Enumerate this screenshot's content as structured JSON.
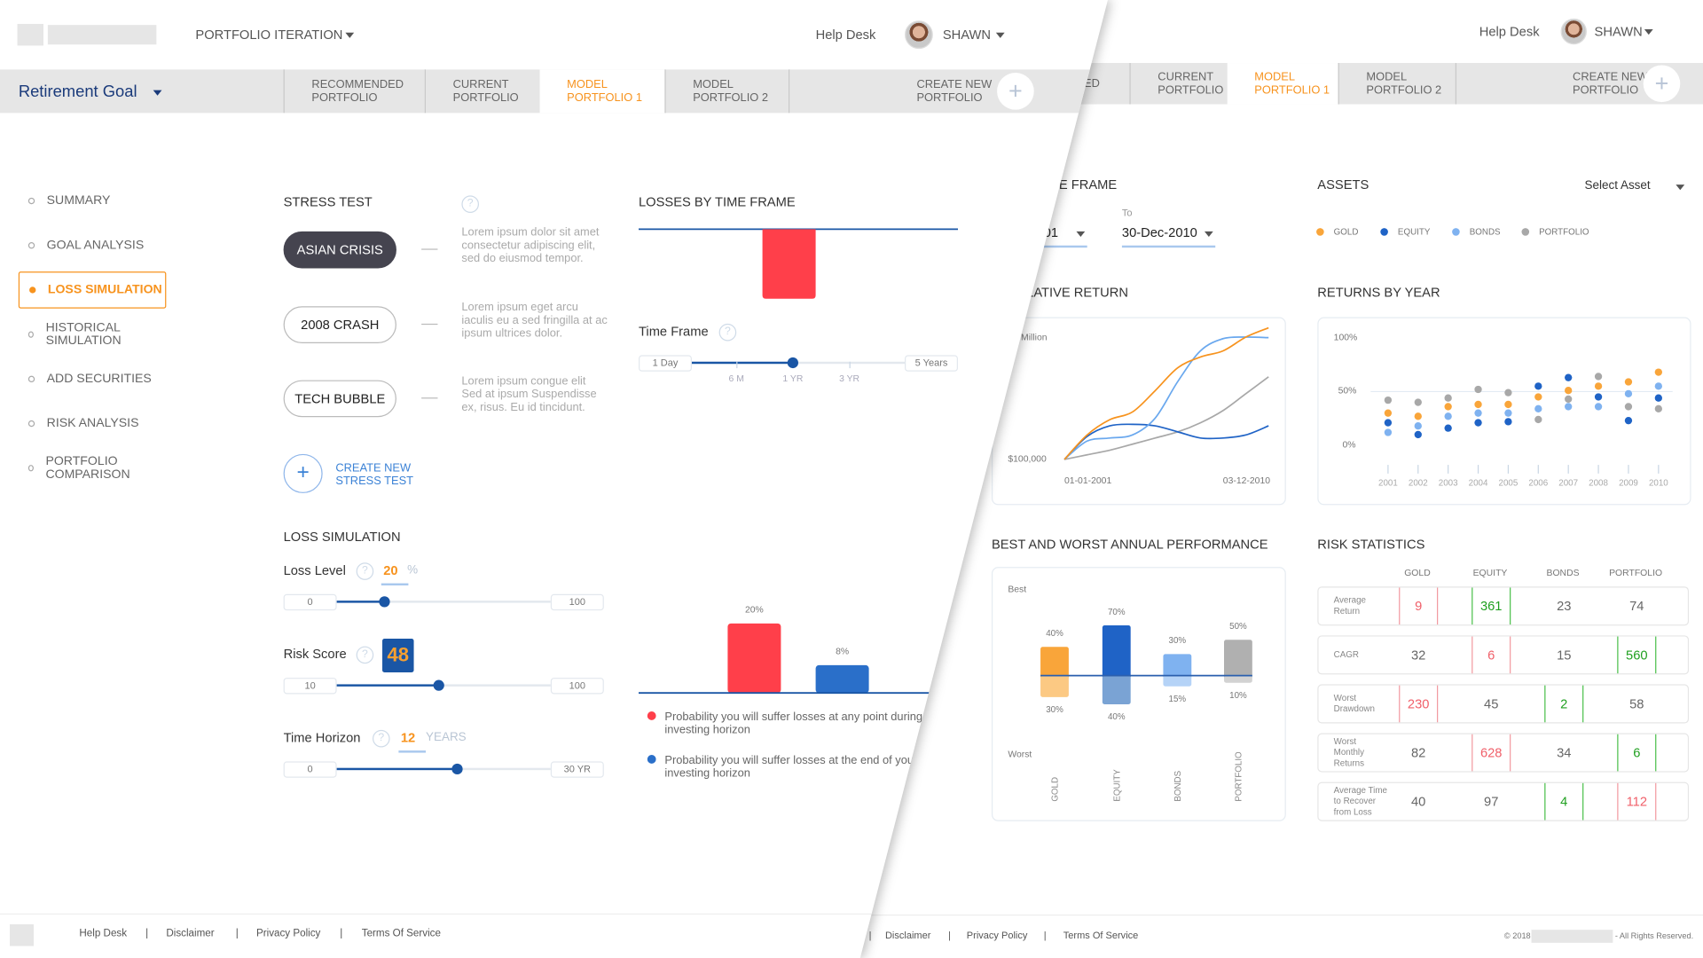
{
  "colors": {
    "accent_orange": "#f7931e",
    "navy": "#1a3a7a",
    "slider_blue": "#1a56a5",
    "loss_red": "#ff3f4a",
    "loss_blue": "#2a6fc9",
    "gold": "#f9a53a",
    "equity": "#1f63c6",
    "bonds": "#7fb2f0",
    "portfolio": "#a8a8a8"
  },
  "left": {
    "header": {
      "app_menu": "PORTFOLIO ITERATION",
      "help": "Help Desk",
      "user": "SHAWN"
    },
    "goal": "Retirement Goal",
    "tabs": [
      "RECOMMENDED\nPORTFOLIO",
      "CURRENT\nPORTFOLIO",
      "MODEL\nPORTFOLIO 1",
      "MODEL\nPORTFOLIO 2",
      "CREATE NEW\nPORTFOLIO"
    ],
    "active_tab": 2,
    "sidebar": [
      "SUMMARY",
      "GOAL ANALYSIS",
      "LOSS SIMULATION",
      "HISTORICAL SIMULATION",
      "ADD SECURITIES",
      "RISK ANALYSIS",
      "PORTFOLIO COMPARISON"
    ],
    "sidebar_active": 2,
    "stress_test": {
      "title": "STRESS TEST",
      "help": "?",
      "scenarios": [
        {
          "label": "ASIAN CRISIS",
          "desc": "Lorem ipsum dolor sit amet consectetur adipiscing elit, sed do eiusmod tempor.",
          "selected": true
        },
        {
          "label": "2008 CRASH",
          "desc": "Lorem ipsum eget arcu iaculis eu a sed fringilla at ac ipsum ultrices dolor.",
          "selected": false
        },
        {
          "label": "TECH BUBBLE",
          "desc": "Lorem ipsum congue elit Sed at ipsum Suspendisse ex, risus. Eu id tincidunt.",
          "selected": false
        }
      ],
      "create_label": "CREATE NEW\nSTRESS TEST"
    },
    "loss_simulation": {
      "title": "LOSS SIMULATION",
      "loss_level": {
        "label": "Loss Level",
        "value": "20",
        "unit": "%",
        "min": "0",
        "max": "100"
      },
      "risk_score": {
        "label": "Risk Score",
        "value": "48",
        "min": "10",
        "max": "100"
      },
      "time_horizon": {
        "label": "Time Horizon",
        "value": "12",
        "unit": "YEARS",
        "min": "0",
        "max": "30 YR"
      }
    },
    "losses_by_time_frame": {
      "title": "LOSSES BY TIME FRAME",
      "time_frame_label": "Time Frame",
      "slider": {
        "min": "1 Day",
        "max": "5 Years",
        "ticks": [
          "6 M",
          "1 YR",
          "3 YR"
        ],
        "selected": "1 YR"
      },
      "legend": [
        "Probability you will suffer losses at any point during your investing horizon",
        "Probability you will suffer losses at the end of your investing horizon"
      ]
    },
    "footer": [
      "Help Desk",
      "Disclaimer",
      "Privacy Policy",
      "Terms Of Service"
    ]
  },
  "right": {
    "header": {
      "help": "Help Desk",
      "user": "SHAWN"
    },
    "tabs": [
      "ED",
      "CURRENT\nPORTFOLIO",
      "MODEL\nPORTFOLIO 1",
      "MODEL\nPORTFOLIO 2",
      "CREATE NEW\nPORTFOLIO"
    ],
    "active_tab": 2,
    "time_frame": {
      "title_fragment": "E FRAME",
      "from_fragment": "01",
      "to_label": "To",
      "to_value": "30-Dec-2010"
    },
    "assets": {
      "title": "ASSETS",
      "select": "Select Asset",
      "legend": [
        "GOLD",
        "EQUITY",
        "BONDS",
        "PORTFOLIO"
      ]
    },
    "cumulative_return": {
      "title_fragment": "LATIVE RETURN",
      "y_top": "Million",
      "y_bottom": "$100,000",
      "x_start": "01-01-2001",
      "x_end": "03-12-2010"
    },
    "returns_by_year": {
      "title": "RETURNS BY YEAR",
      "y_ticks": [
        "100%",
        "50%",
        "0%"
      ]
    },
    "best_worst": {
      "title": "BEST AND WORST ANNUAL PERFORMANCE",
      "best": "Best",
      "worst": "Worst"
    },
    "risk_statistics": {
      "title": "RISK STATISTICS",
      "columns": [
        "GOLD",
        "EQUITY",
        "BONDS",
        "PORTFOLIO"
      ],
      "rows": [
        {
          "label": "Average\nReturn",
          "values": [
            "9",
            "361",
            "23",
            "74"
          ],
          "status": [
            "red",
            "green",
            "",
            ""
          ]
        },
        {
          "label": "CAGR",
          "values": [
            "32",
            "6",
            "15",
            "560"
          ],
          "status": [
            "",
            "red",
            "",
            "green"
          ]
        },
        {
          "label": "Worst\nDrawdown",
          "values": [
            "230",
            "45",
            "2",
            "58"
          ],
          "status": [
            "red",
            "",
            "green",
            ""
          ]
        },
        {
          "label": "Worst\nMonthly\nReturns",
          "values": [
            "82",
            "628",
            "34",
            "6"
          ],
          "status": [
            "",
            "red",
            "",
            "green"
          ]
        },
        {
          "label": "Average Time\nto Recover\nfrom Loss",
          "values": [
            "40",
            "97",
            "4",
            "112"
          ],
          "status": [
            "",
            "",
            "green",
            "red"
          ]
        }
      ]
    },
    "footer": {
      "copy_fragment": "© 20",
      "links": [
        "Disclaimer",
        "Privacy Policy",
        "Terms Of Service"
      ],
      "copyright_prefix": "© 2018",
      "copyright_suffix": "- All Rights Reserved."
    }
  },
  "chart_data": [
    {
      "id": "losses_by_time_frame",
      "type": "bar",
      "categories": [
        "1 YR"
      ],
      "values": [
        -20
      ],
      "ylabel": "",
      "xlabel": ""
    },
    {
      "id": "loss_probability",
      "type": "bar",
      "categories": [
        "any point",
        "end"
      ],
      "values": [
        20,
        8
      ],
      "data_labels": [
        "20%",
        "8%"
      ],
      "unit": "%"
    },
    {
      "id": "cumulative_return",
      "type": "line",
      "x": [
        "2001",
        "2002",
        "2003",
        "2004",
        "2005",
        "2006",
        "2007",
        "2008",
        "2009",
        "2010"
      ],
      "x_tick_labels": [
        "01-01-2001",
        "03-12-2010"
      ],
      "y_tick_labels": [
        "$100,000",
        "Million"
      ],
      "ylim": [
        100000,
        1000000
      ],
      "series": [
        {
          "name": "GOLD",
          "values": [
            100000,
            275000,
            384000,
            439000,
            591000,
            755000,
            832000,
            876000,
            974000,
            1040000
          ]
        },
        {
          "name": "EQUITY",
          "values": [
            100000,
            264000,
            340000,
            351000,
            340000,
            297000,
            253000,
            253000,
            275000,
            340000
          ]
        },
        {
          "name": "BONDS",
          "values": [
            100000,
            231000,
            253000,
            275000,
            395000,
            657000,
            876000,
            963000,
            974000,
            970000
          ]
        },
        {
          "name": "PORTFOLIO",
          "values": [
            100000,
            133000,
            166000,
            209000,
            253000,
            297000,
            362000,
            450000,
            570000,
            690000
          ]
        }
      ]
    },
    {
      "id": "returns_by_year",
      "type": "scatter",
      "x": [
        "2001",
        "2002",
        "2003",
        "2004",
        "2005",
        "2006",
        "2007",
        "2008",
        "2009",
        "2010"
      ],
      "ylim": [
        0,
        100
      ],
      "y_tick_labels": [
        "0%",
        "50%",
        "100%"
      ],
      "grid": "50% line",
      "series": [
        {
          "name": "GOLD",
          "values": [
            30,
            27,
            36,
            38,
            38,
            45,
            51,
            55,
            59,
            68
          ]
        },
        {
          "name": "EQUITY",
          "values": [
            21,
            10,
            16,
            21,
            22,
            55,
            63,
            45,
            23,
            44
          ]
        },
        {
          "name": "BONDS",
          "values": [
            12,
            18,
            27,
            30,
            30,
            34,
            36,
            36,
            48,
            55
          ]
        },
        {
          "name": "PORTFOLIO",
          "values": [
            42,
            40,
            44,
            52,
            49,
            24,
            43,
            64,
            36,
            34
          ]
        }
      ]
    },
    {
      "id": "best_worst",
      "type": "bar",
      "categories": [
        "GOLD",
        "EQUITY",
        "BONDS",
        "PORTFOLIO"
      ],
      "series": [
        {
          "name": "Best",
          "values": [
            40,
            70,
            30,
            50
          ]
        },
        {
          "name": "Worst",
          "values": [
            30,
            40,
            15,
            10
          ]
        }
      ],
      "unit": "%"
    }
  ]
}
